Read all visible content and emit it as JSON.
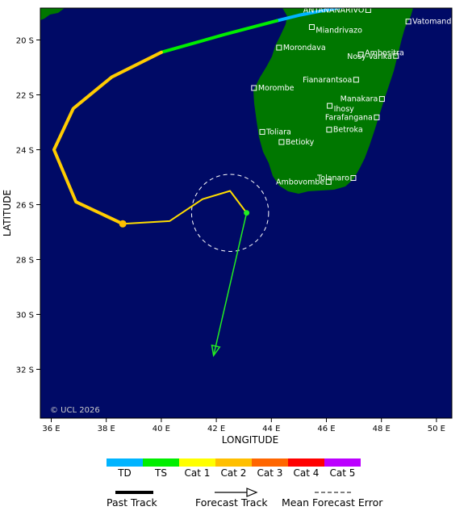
{
  "map": {
    "background_color": "#000a66",
    "land_color": "#007700",
    "x_axis_title": "LONGITUDE",
    "y_axis_title": "LATITUDE",
    "x_ticks": [
      {
        "lon": 36,
        "label": "36 E"
      },
      {
        "lon": 38,
        "label": "38 E"
      },
      {
        "lon": 40,
        "label": "40 E"
      },
      {
        "lon": 42,
        "label": "42 E"
      },
      {
        "lon": 44,
        "label": "44 E"
      },
      {
        "lon": 46,
        "label": "46 E"
      },
      {
        "lon": 48,
        "label": "48 E"
      },
      {
        "lon": 50,
        "label": "50 E"
      }
    ],
    "y_ticks": [
      {
        "lat": -20,
        "label": "20 S"
      },
      {
        "lat": -22,
        "label": "22 S"
      },
      {
        "lat": -24,
        "label": "24 S"
      },
      {
        "lat": -26,
        "label": "26 S"
      },
      {
        "lat": -28,
        "label": "28 S"
      },
      {
        "lat": -30,
        "label": "30 S"
      },
      {
        "lat": -32,
        "label": "32 S"
      }
    ],
    "copyright": "© UCL 2026",
    "cities": [
      {
        "name": "ANTANANARIVO",
        "lon": 47.52,
        "lat": -18.91
      },
      {
        "name": "Vatomandry",
        "lon": 48.98,
        "lat": -19.33
      },
      {
        "name": "Miandrivazo",
        "lon": 45.47,
        "lat": -19.53
      },
      {
        "name": "Morondava",
        "lon": 44.28,
        "lat": -20.28
      },
      {
        "name": "Ambositra",
        "lon": 47.25,
        "lat": -20.53
      },
      {
        "name": "Nosy-Varika",
        "lon": 48.53,
        "lat": -20.58
      },
      {
        "name": "Fianarantsoa",
        "lon": 47.08,
        "lat": -21.45
      },
      {
        "name": "Morombe",
        "lon": 43.37,
        "lat": -21.75
      },
      {
        "name": "Manakara",
        "lon": 48.02,
        "lat": -22.15
      },
      {
        "name": "Ihosy",
        "lon": 46.12,
        "lat": -22.4
      },
      {
        "name": "Farafangana",
        "lon": 47.83,
        "lat": -22.82
      },
      {
        "name": "Betroka",
        "lon": 46.1,
        "lat": -23.27
      },
      {
        "name": "Toliara",
        "lon": 43.67,
        "lat": -23.35
      },
      {
        "name": "Betioky",
        "lon": 44.37,
        "lat": -23.72
      },
      {
        "name": "Tolanaro",
        "lon": 46.98,
        "lat": -25.03
      },
      {
        "name": "Ambovombe",
        "lon": 46.08,
        "lat": -25.17
      }
    ]
  },
  "storm": {
    "past_track_segments": [
      {
        "category": "TD",
        "points": [
          [
            47.6,
            -18.6
          ],
          [
            45.0,
            -19.1
          ],
          [
            44.2,
            -19.3
          ]
        ]
      },
      {
        "category": "TS",
        "points": [
          [
            44.2,
            -19.3
          ],
          [
            42.3,
            -19.8
          ],
          [
            40.0,
            -20.45
          ]
        ]
      },
      {
        "category": "Cat 1",
        "points": [
          [
            40.0,
            -20.45
          ],
          [
            38.2,
            -21.35
          ],
          [
            36.8,
            -22.5
          ],
          [
            36.1,
            -24.0
          ],
          [
            36.9,
            -25.9
          ],
          [
            38.6,
            -26.7
          ]
        ]
      },
      {
        "category": "Cat 1 (thin)",
        "points": [
          [
            38.6,
            -26.7
          ],
          [
            40.3,
            -26.6
          ],
          [
            41.5,
            -25.8
          ],
          [
            42.5,
            -25.5
          ],
          [
            43.1,
            -26.3
          ]
        ]
      }
    ],
    "past_track_marker": {
      "lon": 38.6,
      "lat": -26.7
    },
    "current_position": {
      "lon": 43.1,
      "lat": -26.3
    },
    "forecast_track": [
      [
        43.1,
        -26.3
      ],
      [
        41.9,
        -31.5
      ]
    ],
    "error_circle": {
      "lon": 42.5,
      "lat": -26.3,
      "radius_deg": 1.4
    }
  },
  "legend": {
    "categories": [
      {
        "label": "TD",
        "color": "#00b4ff"
      },
      {
        "label": "TS",
        "color": "#00ee00"
      },
      {
        "label": "Cat 1",
        "color": "#ffff00"
      },
      {
        "label": "Cat 2",
        "color": "#ffbf00"
      },
      {
        "label": "Cat 3",
        "color": "#ff6600"
      },
      {
        "label": "Cat 4",
        "color": "#ff0000"
      },
      {
        "label": "Cat 5",
        "color": "#bb00ff"
      }
    ],
    "past_track_label": "Past Track",
    "forecast_track_label": "Forecast Track",
    "mean_error_label": "Mean Forecast Error"
  }
}
